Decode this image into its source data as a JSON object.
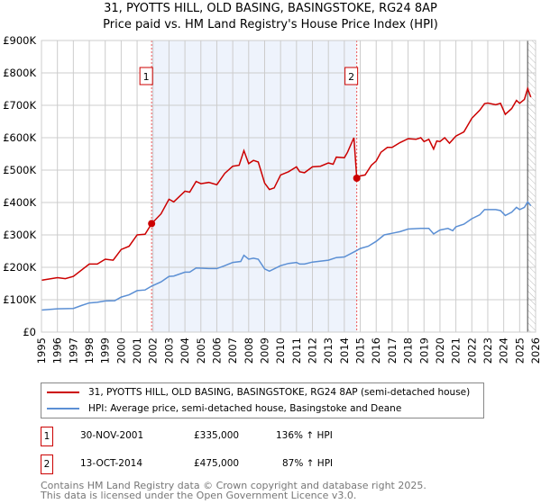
{
  "chart_data": {
    "type": "line",
    "title": "31, PYOTTS HILL, OLD BASING, BASINGSTOKE, RG24 8AP",
    "subtitle": "Price paid vs. HM Land Registry's House Price Index (HPI)",
    "xlim": [
      1995,
      2026
    ],
    "ylim": [
      0,
      900000
    ],
    "x_ticks": [
      "1995",
      "1996",
      "1997",
      "1998",
      "1999",
      "2000",
      "2001",
      "2002",
      "2003",
      "2004",
      "2005",
      "2006",
      "2007",
      "2008",
      "2009",
      "2010",
      "2011",
      "2012",
      "2013",
      "2014",
      "2015",
      "2016",
      "2017",
      "2018",
      "2019",
      "2020",
      "2021",
      "2022",
      "2023",
      "2024",
      "2025",
      "2026"
    ],
    "y_ticks": [
      {
        "v": 0,
        "label": "£0"
      },
      {
        "v": 100000,
        "label": "£100K"
      },
      {
        "v": 200000,
        "label": "£200K"
      },
      {
        "v": 300000,
        "label": "£300K"
      },
      {
        "v": 400000,
        "label": "£400K"
      },
      {
        "v": 500000,
        "label": "£500K"
      },
      {
        "v": 600000,
        "label": "£600K"
      },
      {
        "v": 700000,
        "label": "£700K"
      },
      {
        "v": 800000,
        "label": "£800K"
      },
      {
        "v": 900000,
        "label": "£900K"
      }
    ],
    "grid": true,
    "shaded_range": [
      2001.91,
      2014.78
    ],
    "forecast_hatch_from": 2025.5,
    "colors": {
      "property": "#cc0000",
      "hpi": "#5b8fd4",
      "shade": "#eef3fc"
    },
    "series": [
      {
        "name": "31, PYOTTS HILL, OLD BASING, BASINGSTOKE, RG24 8AP (semi-detached house)",
        "color": "#cc0000",
        "points": [
          [
            1995,
            160
          ],
          [
            1996,
            168
          ],
          [
            1996.5,
            165
          ],
          [
            1997,
            172
          ],
          [
            1998,
            210
          ],
          [
            1998.5,
            210
          ],
          [
            1999,
            225
          ],
          [
            1999.5,
            222
          ],
          [
            2000,
            255
          ],
          [
            2000.5,
            265
          ],
          [
            2001,
            300
          ],
          [
            2001.5,
            302
          ],
          [
            2001.91,
            335
          ],
          [
            2002.5,
            365
          ],
          [
            2003,
            410
          ],
          [
            2003.3,
            402
          ],
          [
            2004,
            435
          ],
          [
            2004.3,
            432
          ],
          [
            2004.7,
            465
          ],
          [
            2005,
            458
          ],
          [
            2005.5,
            462
          ],
          [
            2006,
            455
          ],
          [
            2006.5,
            490
          ],
          [
            2007,
            512
          ],
          [
            2007.4,
            515
          ],
          [
            2007.7,
            560
          ],
          [
            2008,
            520
          ],
          [
            2008.3,
            530
          ],
          [
            2008.6,
            525
          ],
          [
            2009,
            460
          ],
          [
            2009.3,
            440
          ],
          [
            2009.6,
            445
          ],
          [
            2010,
            485
          ],
          [
            2010.5,
            495
          ],
          [
            2011,
            510
          ],
          [
            2011.2,
            495
          ],
          [
            2011.5,
            492
          ],
          [
            2012,
            510
          ],
          [
            2012.5,
            512
          ],
          [
            2013,
            522
          ],
          [
            2013.3,
            518
          ],
          [
            2013.5,
            540
          ],
          [
            2014,
            538
          ],
          [
            2014.2,
            555
          ],
          [
            2014.6,
            600
          ],
          [
            2014.78,
            475
          ],
          [
            2015,
            482
          ],
          [
            2015.3,
            485
          ],
          [
            2015.7,
            515
          ],
          [
            2016,
            528
          ],
          [
            2016.3,
            555
          ],
          [
            2016.7,
            570
          ],
          [
            2017,
            570
          ],
          [
            2017.5,
            585
          ],
          [
            2018,
            597
          ],
          [
            2018.5,
            595
          ],
          [
            2018.8,
            600
          ],
          [
            2019,
            588
          ],
          [
            2019.3,
            595
          ],
          [
            2019.6,
            565
          ],
          [
            2019.8,
            590
          ],
          [
            2020,
            588
          ],
          [
            2020.3,
            600
          ],
          [
            2020.6,
            583
          ],
          [
            2021,
            605
          ],
          [
            2021.5,
            618
          ],
          [
            2022,
            660
          ],
          [
            2022.5,
            685
          ],
          [
            2022.8,
            705
          ],
          [
            2023,
            707
          ],
          [
            2023.5,
            702
          ],
          [
            2023.8,
            706
          ],
          [
            2024.1,
            672
          ],
          [
            2024.5,
            690
          ],
          [
            2024.8,
            715
          ],
          [
            2025,
            706
          ],
          [
            2025.3,
            718
          ],
          [
            2025.5,
            752
          ],
          [
            2025.7,
            725
          ]
        ]
      },
      {
        "name": "HPI: Average price, semi-detached house, Basingstoke and Deane",
        "color": "#5b8fd4",
        "points": [
          [
            1995,
            68
          ],
          [
            1996,
            72
          ],
          [
            1997,
            73
          ],
          [
            1997.5,
            82
          ],
          [
            1998,
            90
          ],
          [
            1998.5,
            92
          ],
          [
            1999,
            96
          ],
          [
            1999.6,
            97
          ],
          [
            2000,
            108
          ],
          [
            2000.5,
            115
          ],
          [
            2001,
            128
          ],
          [
            2001.5,
            130
          ],
          [
            2001.91,
            142
          ],
          [
            2002.5,
            155
          ],
          [
            2003,
            172
          ],
          [
            2003.3,
            173
          ],
          [
            2004,
            185
          ],
          [
            2004.3,
            185
          ],
          [
            2004.7,
            198
          ],
          [
            2005.5,
            196
          ],
          [
            2006,
            196
          ],
          [
            2006.5,
            205
          ],
          [
            2007,
            215
          ],
          [
            2007.5,
            218
          ],
          [
            2007.7,
            237
          ],
          [
            2008,
            225
          ],
          [
            2008.3,
            228
          ],
          [
            2008.6,
            225
          ],
          [
            2009,
            195
          ],
          [
            2009.3,
            188
          ],
          [
            2010,
            205
          ],
          [
            2010.5,
            212
          ],
          [
            2011,
            215
          ],
          [
            2011.2,
            210
          ],
          [
            2011.5,
            210
          ],
          [
            2012,
            216
          ],
          [
            2013,
            222
          ],
          [
            2013.5,
            230
          ],
          [
            2014,
            232
          ],
          [
            2014.78,
            252
          ],
          [
            2015,
            258
          ],
          [
            2015.5,
            265
          ],
          [
            2016,
            280
          ],
          [
            2016.5,
            300
          ],
          [
            2017,
            305
          ],
          [
            2017.5,
            310
          ],
          [
            2018,
            318
          ],
          [
            2018.8,
            320
          ],
          [
            2019.3,
            320
          ],
          [
            2019.6,
            303
          ],
          [
            2020,
            315
          ],
          [
            2020.5,
            320
          ],
          [
            2020.8,
            313
          ],
          [
            2021,
            325
          ],
          [
            2021.5,
            333
          ],
          [
            2022,
            350
          ],
          [
            2022.5,
            362
          ],
          [
            2022.8,
            378
          ],
          [
            2023.5,
            378
          ],
          [
            2023.8,
            375
          ],
          [
            2024.1,
            360
          ],
          [
            2024.5,
            370
          ],
          [
            2024.8,
            385
          ],
          [
            2025,
            378
          ],
          [
            2025.3,
            385
          ],
          [
            2025.5,
            402
          ],
          [
            2025.7,
            390
          ]
        ]
      }
    ],
    "y_unit_note": "points y in £K",
    "annotations": [
      {
        "label": "1",
        "x": 2001.91,
        "y": 335
      },
      {
        "label": "2",
        "x": 2014.78,
        "y": 475
      }
    ]
  },
  "legend": {
    "property": "31, PYOTTS HILL, OLD BASING, BASINGSTOKE, RG24 8AP (semi-detached house)",
    "hpi": "HPI: Average price, semi-detached house, Basingstoke and Deane"
  },
  "sales": [
    {
      "num": "1",
      "date": "30-NOV-2001",
      "price": "£335,000",
      "hpi": "136% ↑ HPI"
    },
    {
      "num": "2",
      "date": "13-OCT-2014",
      "price": "£475,000",
      "hpi": "87% ↑ HPI"
    }
  ],
  "footer": {
    "line1": "Contains HM Land Registry data © Crown copyright and database right 2025.",
    "line2": "This data is licensed under the Open Government Licence v3.0."
  }
}
